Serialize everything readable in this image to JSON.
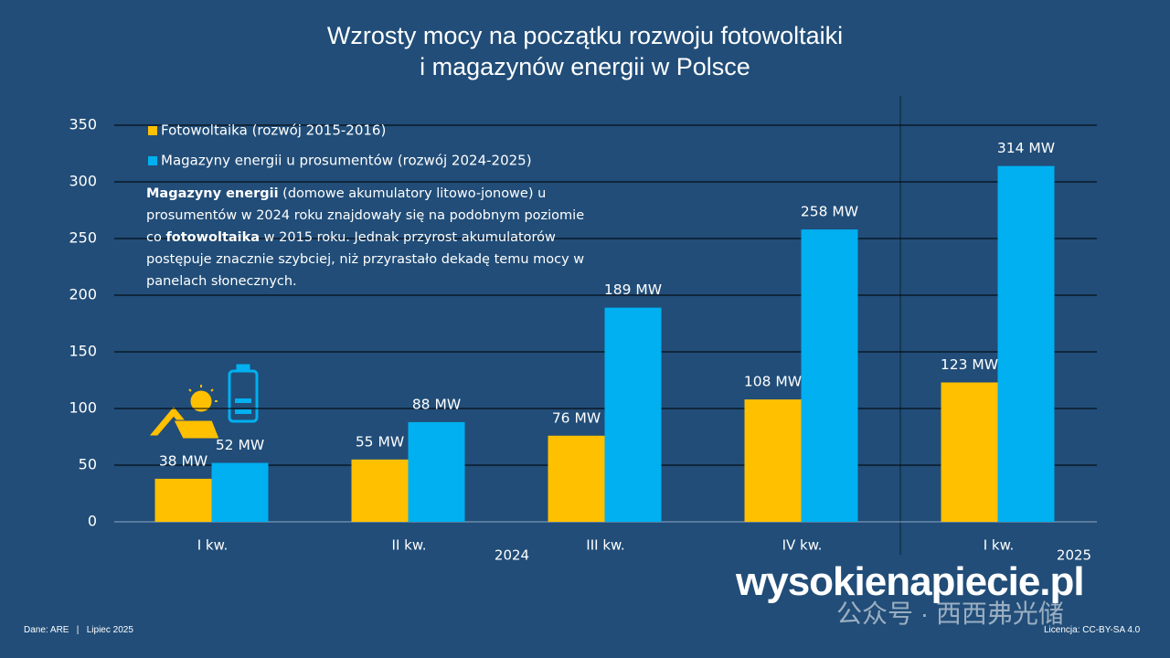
{
  "chart_data": {
    "type": "bar",
    "title": "Wzrosty mocy na początku rozwoju fotowoltaiki\ni magazynów energii w Polsce",
    "categories": [
      "I kw.",
      "II kw.",
      "III kw.",
      "IV kw.",
      "I kw."
    ],
    "year_labels": [
      "2024",
      "2025"
    ],
    "series": [
      {
        "name": "Fotowoltaika (rozwój 2015-2016)",
        "color": "#ffc000",
        "values": [
          38,
          55,
          76,
          108,
          123
        ],
        "value_labels": [
          "38 MW",
          "55 MW",
          "76 MW",
          "108 MW",
          "123 MW"
        ]
      },
      {
        "name": "Magazyny energii u prosumentów (rozwój 2024-2025)",
        "color": "#00b0f0",
        "values": [
          52,
          88,
          189,
          258,
          314
        ],
        "value_labels": [
          "52 MW",
          "88 MW",
          "189 MW",
          "258 MW",
          "314 MW"
        ]
      }
    ],
    "ylim": [
      0,
      350
    ],
    "yticks": [
      0,
      50,
      100,
      150,
      200,
      250,
      300,
      350
    ],
    "grid": true,
    "annotation": [
      {
        "text": "Magazyny energii",
        "bold": true
      },
      {
        "text": " (domowe akumulatory litowo-jonowe) u prosumentów w 2024 roku znajdowały się na podobnym poziomie co ",
        "bold": false
      },
      {
        "text": "fotowoltaika",
        "bold": true
      },
      {
        "text": " w 2015 roku. Jednak przyrost akumulatorów postępuje znacznie szybciej, niż przyrastało dekadę temu mocy w panelach słonecznych.",
        "bold": false
      }
    ],
    "footer": "Dane: ARE   |   Lipiec 2025",
    "license": "Licencja: CC-BY-SA 4.0",
    "logo": "wysokienapiecie.pl",
    "watermark": "公众号 · 西西弗光储"
  }
}
